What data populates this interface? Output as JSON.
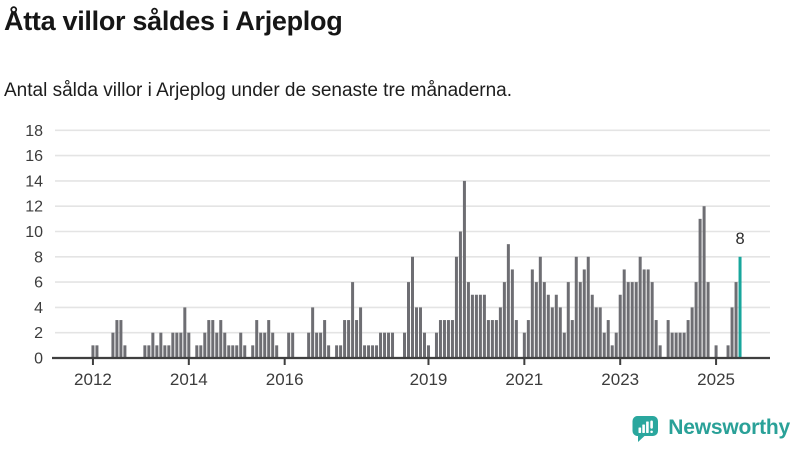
{
  "page": {
    "title": "Åtta villor såldes i Arjeplog",
    "subtitle": "Antal sålda villor i Arjeplog under de senaste tre månaderna."
  },
  "branding": {
    "logo_text": "Newsworthy",
    "logo_color": "#2aa198",
    "logo_icon": "bar-chart-speech-bubble-icon",
    "icon_bg_color": "#2aa79e"
  },
  "chart_data": {
    "type": "bar",
    "title": "Åtta villor såldes i Arjeplog",
    "subtitle": "Antal sålda villor i Arjeplog under de senaste tre månaderna.",
    "ylabel": "",
    "xlabel": "",
    "y_axis": {
      "min": 0,
      "max": 18,
      "tick_step": 2
    },
    "grid": true,
    "legend": "none",
    "bar_color": "#6e6e73",
    "highlight_color": "#18a69c",
    "axis_color": "#3f3f3f",
    "grid_color": "#e4e4e4",
    "tick_label_color": "#3c3c3c",
    "start_month": "2011-04",
    "end_month": "2025-07",
    "x_domain_slots": 179,
    "x_ticks": [
      {
        "label": "2012",
        "month_index": 9
      },
      {
        "label": "2014",
        "month_index": 33
      },
      {
        "label": "2016",
        "month_index": 57
      },
      {
        "label": "2019",
        "month_index": 93
      },
      {
        "label": "2021",
        "month_index": 117
      },
      {
        "label": "2023",
        "month_index": 141
      },
      {
        "label": "2025",
        "month_index": 165
      }
    ],
    "highlight_index": 171,
    "highlight_label": "8",
    "values": [
      0,
      0,
      0,
      0,
      0,
      0,
      0,
      0,
      0,
      1,
      1,
      0,
      0,
      0,
      2,
      3,
      3,
      1,
      0,
      0,
      0,
      0,
      1,
      1,
      2,
      1,
      2,
      1,
      1,
      2,
      2,
      2,
      4,
      2,
      0,
      1,
      1,
      2,
      3,
      3,
      2,
      3,
      2,
      1,
      1,
      1,
      2,
      1,
      0,
      1,
      3,
      2,
      2,
      3,
      2,
      1,
      0,
      0,
      2,
      2,
      0,
      0,
      0,
      2,
      4,
      2,
      2,
      3,
      1,
      0,
      1,
      1,
      3,
      3,
      6,
      3,
      4,
      1,
      1,
      1,
      1,
      2,
      2,
      2,
      2,
      0,
      0,
      2,
      6,
      8,
      4,
      4,
      2,
      1,
      0,
      2,
      3,
      3,
      3,
      3,
      8,
      10,
      14,
      6,
      5,
      5,
      5,
      5,
      3,
      3,
      3,
      4,
      6,
      9,
      7,
      3,
      0,
      2,
      3,
      7,
      6,
      8,
      6,
      5,
      4,
      5,
      4,
      2,
      6,
      3,
      8,
      6,
      7,
      8,
      5,
      4,
      4,
      2,
      3,
      1,
      2,
      5,
      7,
      6,
      6,
      6,
      8,
      7,
      7,
      6,
      3,
      1,
      0,
      3,
      2,
      2,
      2,
      2,
      3,
      4,
      6,
      11,
      12,
      6,
      0,
      1,
      0,
      0,
      1,
      4,
      6,
      8
    ]
  }
}
